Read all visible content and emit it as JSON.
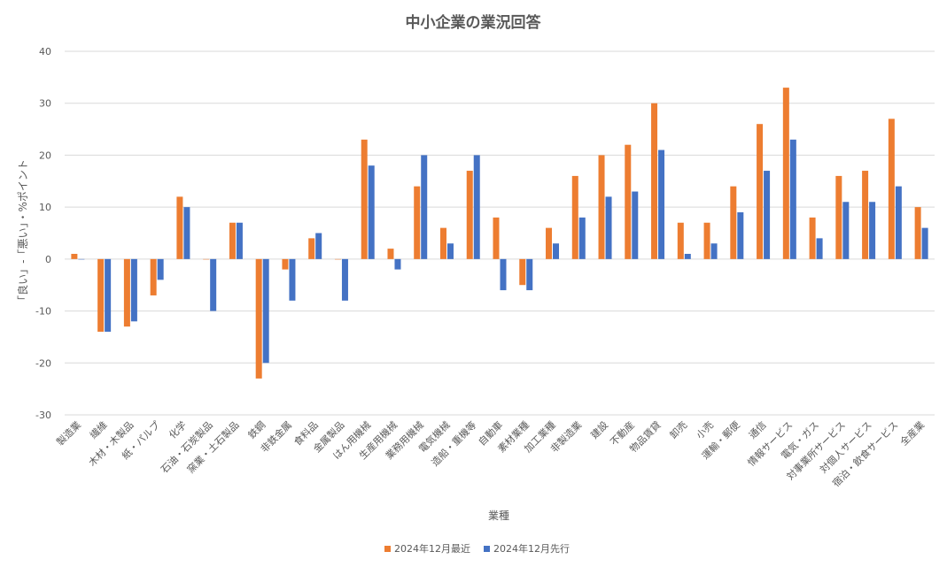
{
  "chart_data": {
    "type": "bar",
    "title": "中小企業の業況回答",
    "xlabel": "業種",
    "ylabel": "「良い」-「悪い」・%ポイント",
    "ylim": [
      -30,
      40
    ],
    "yticks": [
      -30,
      -20,
      -10,
      0,
      10,
      20,
      30,
      40
    ],
    "grid": true,
    "legend": "bottom",
    "categories": [
      "製造業",
      "繊維",
      "木材・木製品",
      "紙・パルプ",
      "化学",
      "石油・石炭製品",
      "窯業・土石製品",
      "鉄鋼",
      "非鉄金属",
      "食料品",
      "金属製品",
      "はん用機械",
      "生産用機械",
      "業務用機械",
      "電気機械",
      "造船・重機等",
      "自動車",
      "素材業種",
      "加工業種",
      "非製造業",
      "建設",
      "不動産",
      "物品賃貸",
      "卸売",
      "小売",
      "運輸・郵便",
      "通信",
      "情報サービス",
      "電気・ガス",
      "対事業所サービス",
      "対個人サービス",
      "宿泊・飲食サービス",
      "全産業"
    ],
    "series": [
      {
        "name": "2024年12月最近",
        "color": "#ED7D31",
        "values": [
          1,
          -14,
          -13,
          -7,
          12,
          0,
          7,
          -23,
          -2,
          4,
          0,
          23,
          2,
          14,
          6,
          17,
          8,
          -5,
          6,
          16,
          20,
          22,
          30,
          7,
          7,
          14,
          26,
          33,
          8,
          16,
          17,
          27,
          10
        ]
      },
      {
        "name": "2024年12月先行",
        "color": "#4472C4",
        "values": [
          0,
          -14,
          -12,
          -4,
          10,
          -10,
          7,
          -20,
          -8,
          5,
          -8,
          18,
          -2,
          20,
          3,
          20,
          -6,
          -6,
          3,
          8,
          12,
          13,
          21,
          1,
          3,
          9,
          17,
          23,
          4,
          11,
          11,
          14,
          6
        ]
      }
    ]
  }
}
